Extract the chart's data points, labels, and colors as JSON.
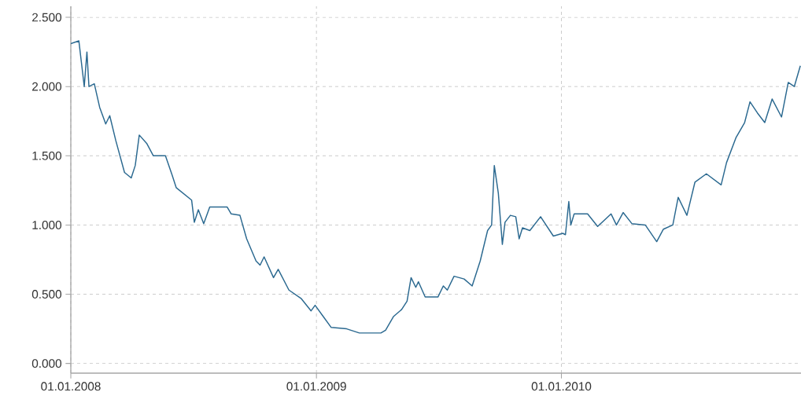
{
  "chart_data": {
    "type": "line",
    "color": "#2b6990",
    "x": [
      "2008-01-01",
      "2008-01-13",
      "2008-01-21",
      "2008-01-25",
      "2008-01-28",
      "2008-02-05",
      "2008-02-13",
      "2008-02-22",
      "2008-02-28",
      "2008-03-08",
      "2008-03-21",
      "2008-03-31",
      "2008-04-06",
      "2008-04-12",
      "2008-04-23",
      "2008-05-03",
      "2008-05-21",
      "2008-05-31",
      "2008-06-06",
      "2008-06-29",
      "2008-07-03",
      "2008-07-09",
      "2008-07-17",
      "2008-07-26",
      "2008-08-21",
      "2008-08-27",
      "2008-09-09",
      "2008-09-19",
      "2008-10-03",
      "2008-10-09",
      "2008-10-15",
      "2008-10-29",
      "2008-11-05",
      "2008-11-21",
      "2008-12-09",
      "2008-12-24",
      "2008-12-30",
      "2009-01-11",
      "2009-01-23",
      "2009-02-15",
      "2009-03-06",
      "2009-04-07",
      "2009-04-14",
      "2009-04-26",
      "2009-05-08",
      "2009-05-16",
      "2009-05-22",
      "2009-05-29",
      "2009-06-02",
      "2009-06-12",
      "2009-07-01",
      "2009-07-09",
      "2009-07-15",
      "2009-07-25",
      "2009-08-09",
      "2009-08-21",
      "2009-09-02",
      "2009-09-13",
      "2009-09-19",
      "2009-09-23",
      "2009-09-29",
      "2009-10-05",
      "2009-10-09",
      "2009-10-17",
      "2009-10-25",
      "2009-10-30",
      "2009-11-04",
      "2009-11-15",
      "2009-12-01",
      "2009-12-20",
      "2010-01-03",
      "2010-01-07",
      "2010-01-12",
      "2010-01-15",
      "2010-01-20",
      "2010-02-09",
      "2010-02-24",
      "2010-03-16",
      "2010-03-24",
      "2010-04-03",
      "2010-04-16",
      "2010-05-06",
      "2010-05-23",
      "2010-06-02",
      "2010-06-16",
      "2010-06-24",
      "2010-07-07",
      "2010-07-19",
      "2010-08-05",
      "2010-08-27",
      "2010-09-04",
      "2010-09-18",
      "2010-10-01",
      "2010-10-09",
      "2010-10-20",
      "2010-10-31",
      "2010-11-11",
      "2010-11-25",
      "2010-12-05",
      "2010-12-14",
      "2010-12-23"
    ],
    "values": [
      2.31,
      2.33,
      2.0,
      2.25,
      2.0,
      2.02,
      1.85,
      1.73,
      1.79,
      1.61,
      1.38,
      1.34,
      1.43,
      1.65,
      1.59,
      1.5,
      1.5,
      1.36,
      1.27,
      1.18,
      1.02,
      1.11,
      1.01,
      1.13,
      1.13,
      1.08,
      1.07,
      0.9,
      0.74,
      0.71,
      0.77,
      0.62,
      0.68,
      0.53,
      0.47,
      0.38,
      0.42,
      0.34,
      0.26,
      0.25,
      0.22,
      0.22,
      0.24,
      0.34,
      0.39,
      0.45,
      0.62,
      0.55,
      0.59,
      0.48,
      0.48,
      0.56,
      0.53,
      0.63,
      0.61,
      0.56,
      0.74,
      0.96,
      1.0,
      1.43,
      1.23,
      0.86,
      1.02,
      1.07,
      1.06,
      0.9,
      0.98,
      0.96,
      1.06,
      0.92,
      0.94,
      0.93,
      1.17,
      1.0,
      1.08,
      1.08,
      0.99,
      1.08,
      1.0,
      1.09,
      1.01,
      1.0,
      0.88,
      0.97,
      1.0,
      1.2,
      1.07,
      1.31,
      1.37,
      1.29,
      1.45,
      1.63,
      1.74,
      1.89,
      1.81,
      1.74,
      1.91,
      1.78,
      2.03,
      2.0,
      2.15
    ],
    "xlim": [
      "2008-01-01",
      "2010-12-24"
    ],
    "ylim": [
      -0.07,
      2.58
    ],
    "xticks": [
      {
        "value": "2008-01-01",
        "label": "01.01.2008"
      },
      {
        "value": "2009-01-01",
        "label": "01.01.2009"
      },
      {
        "value": "2010-01-01",
        "label": "01.01.2010"
      }
    ],
    "yticks": [
      {
        "value": 0,
        "label": "0.000"
      },
      {
        "value": 0.5,
        "label": "0.500"
      },
      {
        "value": 1,
        "label": "1.000"
      },
      {
        "value": 1.5,
        "label": "1.500"
      },
      {
        "value": 2,
        "label": "2.000"
      },
      {
        "value": 2.5,
        "label": "2.500"
      }
    ],
    "grid": true
  }
}
